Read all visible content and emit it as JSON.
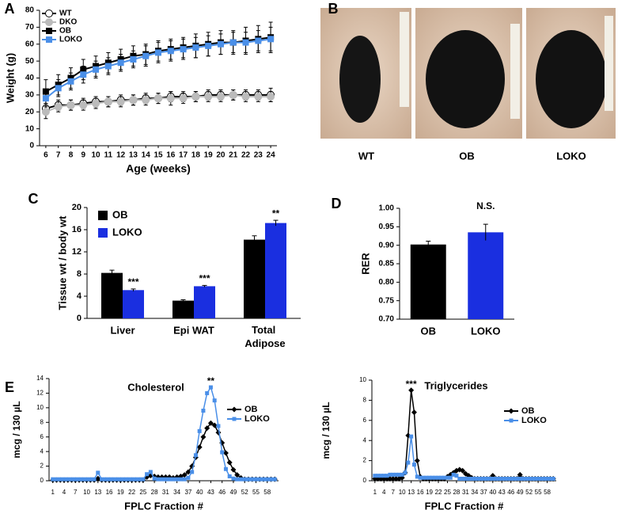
{
  "panel_labels": [
    "A",
    "B",
    "C",
    "D",
    "E"
  ],
  "photos": {
    "labels": [
      "WT",
      "OB",
      "LOKO"
    ]
  },
  "chart_data": [
    {
      "type": "line",
      "xlabel": "Age (weeks)",
      "ylabel": "Weight (g)",
      "x": [
        6,
        7,
        8,
        9,
        10,
        11,
        12,
        13,
        14,
        15,
        16,
        17,
        18,
        19,
        20,
        21,
        22,
        23,
        24
      ],
      "xlim": [
        5.5,
        24.5
      ],
      "xticks": [
        6,
        7,
        8,
        9,
        10,
        11,
        12,
        13,
        14,
        15,
        16,
        17,
        18,
        19,
        20,
        21,
        22,
        23,
        24
      ],
      "ylim": [
        0,
        80
      ],
      "yticks": [
        0,
        10,
        20,
        30,
        40,
        50,
        60,
        70,
        80
      ],
      "legend": "upper left",
      "series": [
        {
          "name": "WT",
          "color": "#ffffff",
          "marker": "circle",
          "values": [
            22,
            24,
            24,
            25,
            26,
            26,
            27,
            27,
            28,
            28,
            29,
            29,
            29,
            30,
            30,
            30,
            30,
            30,
            30
          ],
          "errors": [
            3,
            3,
            3,
            3,
            3,
            3,
            3,
            3,
            3,
            3,
            3,
            3,
            3,
            3,
            3,
            3,
            3,
            3,
            4
          ]
        },
        {
          "name": "DKO",
          "color": "#bbbbbb",
          "marker": "circle",
          "values": [
            20,
            23,
            24,
            24,
            25,
            26,
            26,
            27,
            27,
            28,
            28,
            28,
            29,
            29,
            29,
            30,
            29,
            29,
            29
          ],
          "errors": [
            4,
            3,
            3,
            3,
            3,
            3,
            3,
            3,
            3,
            3,
            4,
            3,
            3,
            3,
            3,
            3,
            3,
            3,
            3
          ]
        },
        {
          "name": "OB",
          "color": "#000000",
          "marker": "square",
          "values": [
            32,
            36,
            40,
            45,
            47,
            49,
            51,
            53,
            54,
            56,
            57,
            58,
            59,
            60,
            61,
            61,
            62,
            63,
            64
          ],
          "errors": [
            7,
            6,
            6,
            6,
            6,
            6,
            6,
            6,
            6,
            6,
            6,
            6,
            7,
            7,
            7,
            7,
            8,
            8,
            9
          ]
        },
        {
          "name": "LOKO",
          "color": "#4a8fe8",
          "marker": "square",
          "values": [
            28,
            34,
            38,
            42,
            45,
            47,
            49,
            51,
            53,
            55,
            56,
            57,
            58,
            59,
            60,
            61,
            61,
            62,
            63
          ],
          "errors": [
            5,
            5,
            5,
            5,
            5,
            5,
            5,
            5,
            6,
            6,
            6,
            6,
            6,
            6,
            6,
            6,
            6,
            6,
            7
          ]
        }
      ]
    },
    {
      "type": "bar",
      "ylabel": "Tissue wt / body wt",
      "categories": [
        "Liver",
        "Epi WAT",
        "Total Adipose"
      ],
      "ylim": [
        0,
        20
      ],
      "yticks": [
        0,
        4,
        8,
        12,
        16,
        20
      ],
      "legend": "upper left",
      "series": [
        {
          "name": "OB",
          "color": "#000000",
          "values": [
            8.2,
            3.2,
            14.2
          ],
          "errors": [
            0.5,
            0.15,
            0.7
          ]
        },
        {
          "name": "LOKO",
          "color": "#1a2fe0",
          "values": [
            5.1,
            5.8,
            17.2
          ],
          "errors": [
            0.2,
            0.15,
            0.5
          ],
          "annotations": [
            "***",
            "***",
            "**"
          ]
        }
      ]
    },
    {
      "type": "bar",
      "ylabel": "RER",
      "categories": [
        "OB",
        "LOKO"
      ],
      "values": [
        0.902,
        0.935
      ],
      "errors": [
        0.009,
        0.022
      ],
      "colors": [
        "#000000",
        "#1a2fe0"
      ],
      "annotations": [
        null,
        "N.S."
      ],
      "ylim": [
        0.7,
        1.0
      ],
      "yticks": [
        {
          "value": 0.7,
          "label": "0.70"
        },
        0.75,
        {
          "value": 0.8,
          "label": "0.80"
        },
        0.85,
        {
          "value": 0.9,
          "label": "0.90"
        },
        0.95,
        {
          "value": 1.0,
          "label": "1.00"
        }
      ]
    },
    {
      "type": "line",
      "title": "Cholesterol",
      "xlabel": "FPLC Fraction #",
      "ylabel": "mcg / 130 µL",
      "x": [
        1,
        2,
        3,
        4,
        5,
        6,
        7,
        8,
        9,
        10,
        11,
        12,
        13,
        14,
        15,
        16,
        17,
        18,
        19,
        20,
        21,
        22,
        23,
        24,
        25,
        26,
        27,
        28,
        29,
        30,
        31,
        32,
        33,
        34,
        35,
        36,
        37,
        38,
        39,
        40,
        41,
        42,
        43,
        44,
        45,
        46,
        47,
        48,
        49,
        50,
        51,
        52,
        53,
        54,
        55,
        56,
        57,
        58,
        59,
        60
      ],
      "xlim": [
        0,
        61
      ],
      "xticks": [
        1,
        4,
        7,
        10,
        13,
        16,
        19,
        22,
        25,
        28,
        31,
        34,
        37,
        40,
        43,
        46,
        49,
        52,
        55,
        58
      ],
      "ylim": [
        0,
        14
      ],
      "yticks": [
        0,
        2,
        4,
        6,
        8,
        10,
        12,
        14
      ],
      "legend": "upper right",
      "annotations": [
        {
          "text": "**",
          "x": 43
        }
      ],
      "series": [
        {
          "name": "OB",
          "color": "#000000",
          "marker": "diamond",
          "values": [
            0.1,
            0.1,
            0.1,
            0.1,
            0.1,
            0.1,
            0.1,
            0.1,
            0.1,
            0.1,
            0.1,
            0.1,
            0.3,
            0.1,
            0.1,
            0.1,
            0.1,
            0.1,
            0.1,
            0.1,
            0.1,
            0.1,
            0.1,
            0.1,
            0.1,
            0.5,
            0.7,
            0.6,
            0.5,
            0.5,
            0.5,
            0.5,
            0.4,
            0.5,
            0.6,
            0.8,
            1.2,
            2.0,
            3.2,
            4.6,
            6.0,
            7.2,
            7.9,
            7.6,
            6.6,
            5.2,
            3.8,
            2.5,
            1.5,
            0.8,
            0.4,
            0.2,
            0.2,
            0.2,
            0.2,
            0.2,
            0.2,
            0.2,
            0.2,
            0.2
          ]
        },
        {
          "name": "LOKO",
          "color": "#4a8fe8",
          "marker": "square",
          "values": [
            0.2,
            0.2,
            0.2,
            0.2,
            0.2,
            0.2,
            0.2,
            0.2,
            0.2,
            0.2,
            0.2,
            0.2,
            1.1,
            0.2,
            0.2,
            0.2,
            0.2,
            0.2,
            0.2,
            0.2,
            0.2,
            0.2,
            0.2,
            0.2,
            0.2,
            0.9,
            1.2,
            0.3,
            0.2,
            0.2,
            0.2,
            0.2,
            0.2,
            0.2,
            0.2,
            0.2,
            0.4,
            1.2,
            3.5,
            6.8,
            9.6,
            12.0,
            12.8,
            11.0,
            7.5,
            3.9,
            1.6,
            0.6,
            0.3,
            0.2,
            0.2,
            0.2,
            0.2,
            0.2,
            0.2,
            0.2,
            0.2,
            0.2,
            0.2,
            0.2
          ]
        }
      ]
    },
    {
      "type": "line",
      "title": "Triglycerides",
      "xlabel": "FPLC Fraction #",
      "ylabel": "mcg / 130 µL",
      "x": [
        1,
        2,
        3,
        4,
        5,
        6,
        7,
        8,
        9,
        10,
        11,
        12,
        13,
        14,
        15,
        16,
        17,
        18,
        19,
        20,
        21,
        22,
        23,
        24,
        25,
        26,
        27,
        28,
        29,
        30,
        31,
        32,
        33,
        34,
        35,
        36,
        37,
        38,
        39,
        40,
        41,
        42,
        43,
        44,
        45,
        46,
        47,
        48,
        49,
        50,
        51,
        52,
        53,
        54,
        55,
        56,
        57,
        58,
        59,
        60
      ],
      "xlim": [
        0,
        61
      ],
      "xticks": [
        1,
        4,
        7,
        10,
        13,
        16,
        19,
        22,
        25,
        28,
        31,
        34,
        37,
        40,
        43,
        46,
        49,
        52,
        55,
        58
      ],
      "ylim": [
        0,
        10
      ],
      "yticks": [
        0,
        2,
        4,
        6,
        8,
        10
      ],
      "legend": "upper right",
      "annotations": [
        {
          "text": "***",
          "x": 13
        }
      ],
      "series": [
        {
          "name": "OB",
          "color": "#000000",
          "marker": "diamond",
          "values": [
            0.2,
            0.2,
            0.2,
            0.2,
            0.2,
            0.2,
            0.2,
            0.2,
            0.2,
            0.3,
            0.8,
            4.5,
            9.0,
            6.8,
            2.0,
            0.4,
            0.2,
            0.2,
            0.2,
            0.2,
            0.2,
            0.2,
            0.2,
            0.2,
            0.4,
            0.6,
            0.8,
            1.0,
            1.1,
            1.0,
            0.7,
            0.5,
            0.3,
            0.2,
            0.2,
            0.2,
            0.2,
            0.2,
            0.2,
            0.5,
            0.2,
            0.2,
            0.2,
            0.2,
            0.2,
            0.2,
            0.2,
            0.2,
            0.6,
            0.2,
            0.2,
            0.2,
            0.2,
            0.2,
            0.2,
            0.2,
            0.2,
            0.2,
            0.2,
            0.2
          ]
        },
        {
          "name": "LOKO",
          "color": "#4a8fe8",
          "marker": "square",
          "values": [
            0.5,
            0.5,
            0.5,
            0.5,
            0.5,
            0.6,
            0.6,
            0.6,
            0.6,
            0.6,
            0.8,
            1.8,
            4.4,
            1.6,
            0.4,
            0.3,
            0.3,
            0.3,
            0.3,
            0.3,
            0.3,
            0.3,
            0.3,
            0.3,
            0.3,
            0.3,
            0.6,
            0.5,
            0.2,
            0.2,
            0.2,
            0.2,
            0.2,
            0.2,
            0.2,
            0.2,
            0.2,
            0.2,
            0.2,
            0.2,
            0.2,
            0.2,
            0.2,
            0.2,
            0.2,
            0.2,
            0.2,
            0.2,
            0.2,
            0.2,
            0.2,
            0.2,
            0.2,
            0.2,
            0.2,
            0.2,
            0.2,
            0.2,
            0.2,
            0.2
          ]
        }
      ]
    }
  ]
}
